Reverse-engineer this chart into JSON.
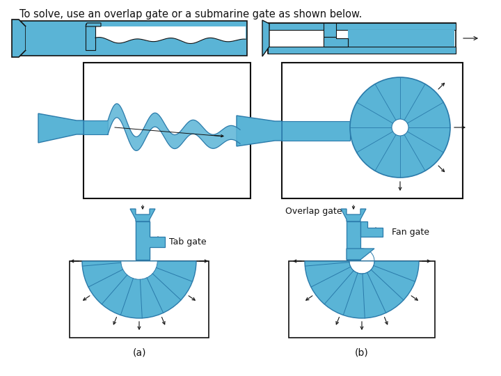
{
  "title": "To solve, use an overlap gate or a submarine gate as shown below.",
  "blue": "#5ab4d6",
  "blue_edge": "#2a7aaa",
  "black": "#111111",
  "white": "#ffffff",
  "bg": "#ffffff",
  "label_tab": "Tab gate",
  "label_fan": "Fan gate",
  "label_overlap": "Overlap gate",
  "label_a": "(a)",
  "label_b": "(b)",
  "title_fontsize": 10.5,
  "label_fontsize": 9
}
